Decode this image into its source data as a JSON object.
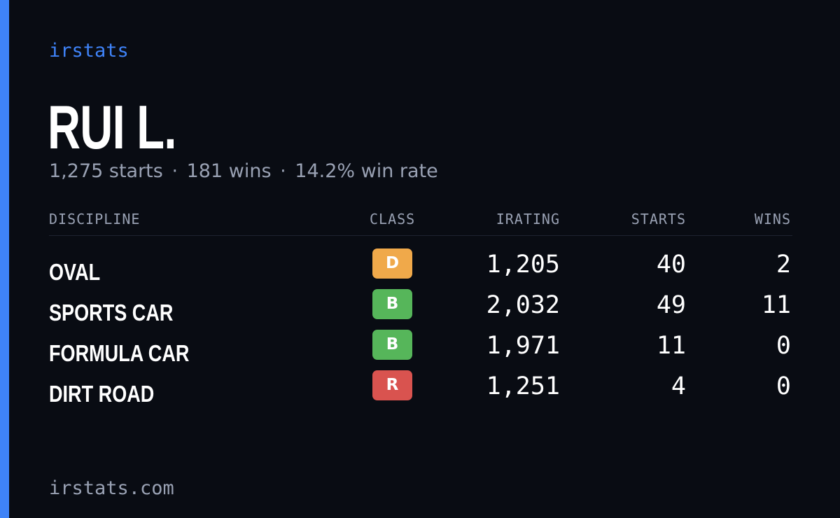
{
  "brand": "irstats",
  "driver_name": "RUI L.",
  "summary": {
    "starts": "1,275 starts",
    "wins": "181 wins",
    "win_rate": "14.2% win rate",
    "separator": "·"
  },
  "table": {
    "headers": {
      "discipline": "DISCIPLINE",
      "class": "CLASS",
      "irating": "IRATING",
      "starts": "STARTS",
      "wins": "WINS"
    },
    "rows": [
      {
        "discipline": "OVAL",
        "class": "D",
        "class_color": "#f0a94a",
        "irating": "1,205",
        "starts": "40",
        "wins": "2"
      },
      {
        "discipline": "SPORTS CAR",
        "class": "B",
        "class_color": "#56b65a",
        "irating": "2,032",
        "starts": "49",
        "wins": "11"
      },
      {
        "discipline": "FORMULA CAR",
        "class": "B",
        "class_color": "#56b65a",
        "irating": "1,971",
        "starts": "11",
        "wins": "0"
      },
      {
        "discipline": "DIRT ROAD",
        "class": "R",
        "class_color": "#d9534f",
        "irating": "1,251",
        "starts": "4",
        "wins": "0"
      }
    ]
  },
  "footer": "irstats.com",
  "colors": {
    "background": "#090c13",
    "accent": "#3f83f8",
    "muted_text": "#99a1b3"
  }
}
